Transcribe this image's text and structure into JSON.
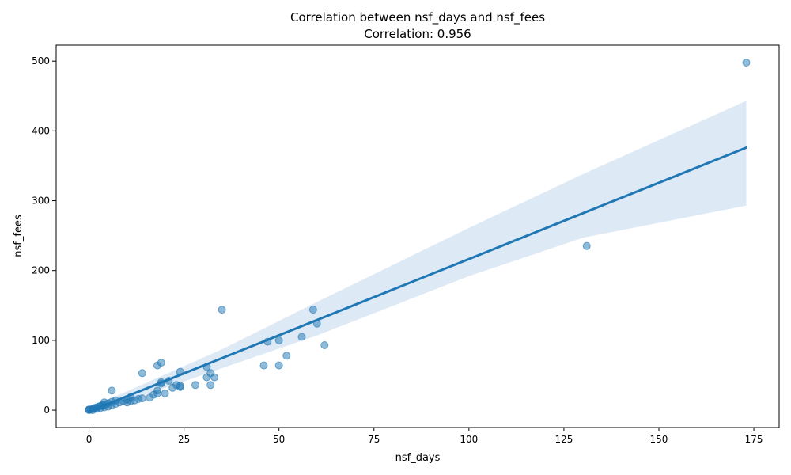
{
  "chart_data": {
    "type": "scatter",
    "title": "Correlation between nsf_days and nsf_fees",
    "subtitle": "Correlation: 0.956",
    "xlabel": "nsf_days",
    "ylabel": "nsf_fees",
    "xlim": [
      -8.65,
      181.65
    ],
    "ylim": [
      -24.9,
      522.9
    ],
    "xticks": [
      0,
      25,
      50,
      75,
      100,
      125,
      150,
      175
    ],
    "yticks": [
      0,
      100,
      200,
      300,
      400,
      500
    ],
    "grid": false,
    "legend": "none",
    "colors": {
      "points": "#1f77b4",
      "regression_line": "#1f77b4",
      "confidence_band": "#c6dbef"
    },
    "regression": {
      "x": [
        0,
        173
      ],
      "y": [
        -2,
        376
      ]
    },
    "confidence_band": {
      "x": [
        0,
        35,
        60,
        100,
        130,
        173
      ],
      "upper": [
        3,
        87,
        155,
        261,
        338,
        443
      ],
      "lower": [
        -6,
        60,
        107,
        192,
        247,
        293
      ]
    },
    "points": [
      {
        "x": 0,
        "y": 0
      },
      {
        "x": 0,
        "y": 1
      },
      {
        "x": 0,
        "y": 0.5
      },
      {
        "x": 0.5,
        "y": 1
      },
      {
        "x": 1,
        "y": 2
      },
      {
        "x": 1,
        "y": 0
      },
      {
        "x": 1.5,
        "y": 3
      },
      {
        "x": 2,
        "y": 4
      },
      {
        "x": 2,
        "y": 2
      },
      {
        "x": 2.5,
        "y": 5
      },
      {
        "x": 3,
        "y": 6
      },
      {
        "x": 3,
        "y": 3
      },
      {
        "x": 3.5,
        "y": 7
      },
      {
        "x": 4,
        "y": 8
      },
      {
        "x": 4,
        "y": 4
      },
      {
        "x": 4,
        "y": 11
      },
      {
        "x": 5,
        "y": 10
      },
      {
        "x": 5,
        "y": 5
      },
      {
        "x": 6,
        "y": 12
      },
      {
        "x": 6,
        "y": 7
      },
      {
        "x": 6,
        "y": 28
      },
      {
        "x": 7,
        "y": 14
      },
      {
        "x": 7,
        "y": 9
      },
      {
        "x": 8,
        "y": 11
      },
      {
        "x": 9,
        "y": 13
      },
      {
        "x": 10,
        "y": 15
      },
      {
        "x": 10,
        "y": 11
      },
      {
        "x": 11,
        "y": 19
      },
      {
        "x": 11,
        "y": 13
      },
      {
        "x": 12,
        "y": 14
      },
      {
        "x": 13,
        "y": 16
      },
      {
        "x": 14,
        "y": 17
      },
      {
        "x": 14,
        "y": 53
      },
      {
        "x": 16,
        "y": 18
      },
      {
        "x": 17,
        "y": 22
      },
      {
        "x": 18,
        "y": 24
      },
      {
        "x": 18,
        "y": 28
      },
      {
        "x": 18,
        "y": 64
      },
      {
        "x": 19,
        "y": 38
      },
      {
        "x": 19,
        "y": 40
      },
      {
        "x": 19,
        "y": 68
      },
      {
        "x": 20,
        "y": 24
      },
      {
        "x": 21,
        "y": 42
      },
      {
        "x": 22,
        "y": 32
      },
      {
        "x": 23,
        "y": 36
      },
      {
        "x": 24,
        "y": 33
      },
      {
        "x": 24,
        "y": 35
      },
      {
        "x": 24,
        "y": 55
      },
      {
        "x": 28,
        "y": 36
      },
      {
        "x": 31,
        "y": 47
      },
      {
        "x": 31,
        "y": 62
      },
      {
        "x": 32,
        "y": 53
      },
      {
        "x": 32,
        "y": 36
      },
      {
        "x": 33,
        "y": 47
      },
      {
        "x": 35,
        "y": 144
      },
      {
        "x": 46,
        "y": 64
      },
      {
        "x": 47,
        "y": 98
      },
      {
        "x": 50,
        "y": 100
      },
      {
        "x": 50,
        "y": 64
      },
      {
        "x": 52,
        "y": 78
      },
      {
        "x": 56,
        "y": 105
      },
      {
        "x": 59,
        "y": 144
      },
      {
        "x": 60,
        "y": 124
      },
      {
        "x": 62,
        "y": 93
      },
      {
        "x": 131,
        "y": 235
      },
      {
        "x": 173,
        "y": 498
      }
    ]
  }
}
